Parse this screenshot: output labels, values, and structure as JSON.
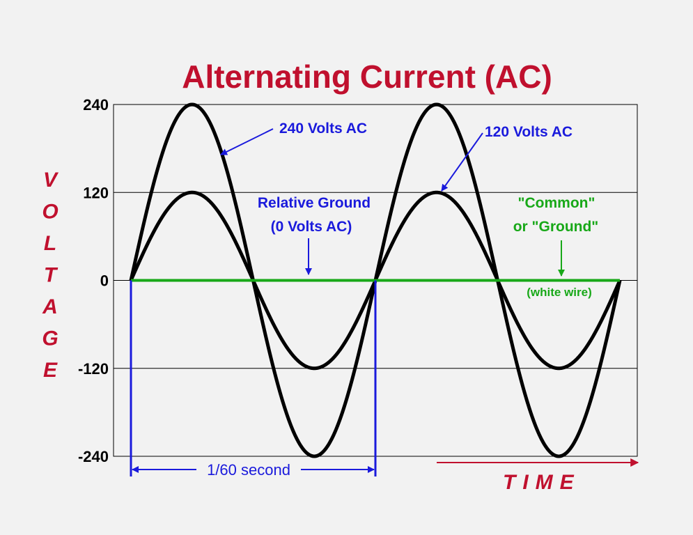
{
  "chart_data": {
    "type": "line",
    "title": "Alternating Current (AC)",
    "ylabel": "VOLTAGE",
    "xlabel": "TIME",
    "ylim": [
      -240,
      240
    ],
    "yticks": [
      "240",
      "120",
      "0",
      "-120",
      "-240"
    ],
    "ytick_values": [
      240,
      120,
      0,
      -120,
      -240
    ],
    "xlim": [
      0,
      2
    ],
    "x_unit": "cycles",
    "series": [
      {
        "name": "240 Volts AC",
        "amplitude": 240,
        "cycles": 2,
        "color": "#000000"
      },
      {
        "name": "120 Volts AC",
        "amplitude": 120,
        "cycles": 2,
        "color": "#000000"
      },
      {
        "name": "Relative Ground",
        "amplitude": 0,
        "cycles": 2,
        "color": "#18a818"
      }
    ],
    "annotations": {
      "v240": "240 Volts AC",
      "v120": "120 Volts AC",
      "ground_line1": "Relative Ground",
      "ground_line2": "(0 Volts AC)",
      "common_line1": "\"Common\"",
      "common_line2": "or \"Ground\"",
      "white_wire": "(white wire)",
      "period": "1/60 second"
    },
    "colors": {
      "title": "#c0102e",
      "annotation_blue": "#1a1adc",
      "ground_green": "#18a818",
      "waves": "#000000"
    }
  }
}
